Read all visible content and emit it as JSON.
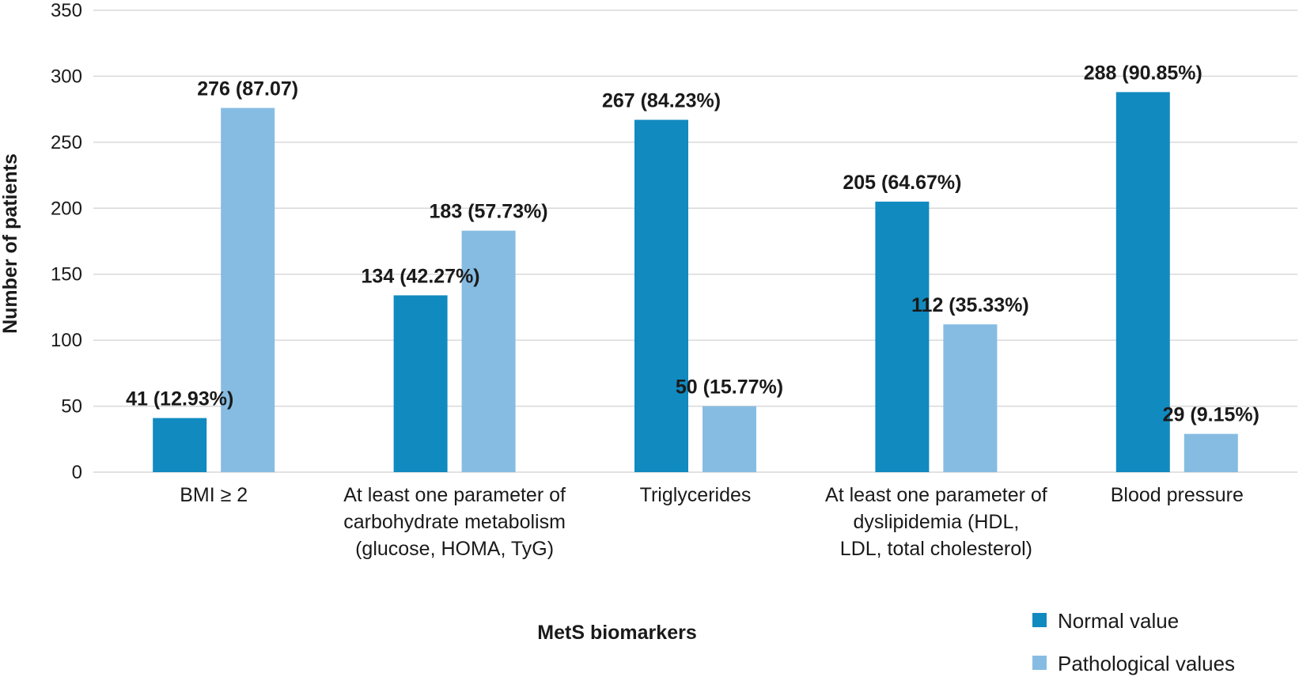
{
  "chart_data": {
    "type": "bar",
    "title": "",
    "xlabel": "MetS biomarkers",
    "ylabel": "Number of patients",
    "ylim": [
      0,
      350
    ],
    "yticks": [
      0,
      50,
      100,
      150,
      200,
      250,
      300,
      350
    ],
    "grid": true,
    "legend_position": "bottom-right",
    "categories": [
      [
        "BMI ≥ 2"
      ],
      [
        "At least one parameter of",
        "carbohydrate metabolism",
        "(glucose, HOMA, TyG)"
      ],
      [
        "Triglycerides"
      ],
      [
        "At least one parameter of",
        "dyslipidemia (HDL,",
        "LDL, total cholesterol)"
      ],
      [
        "Blood pressure"
      ]
    ],
    "series": [
      {
        "name": "Normal value",
        "color": "#118ac0",
        "values": [
          41,
          134,
          267,
          205,
          288
        ],
        "labels": [
          "41 (12.93%)",
          "134 (42.27%)",
          "267 (84.23%)",
          "205 (64.67%)",
          "288 (90.85%)"
        ]
      },
      {
        "name": "Pathological values",
        "color": "#86bce2",
        "values": [
          276,
          183,
          50,
          112,
          29
        ],
        "labels": [
          "276 (87.07)",
          "183 (57.73%)",
          "50 (15.77%)",
          "112 (35.33%)",
          "29 (9.15%)"
        ]
      }
    ]
  }
}
